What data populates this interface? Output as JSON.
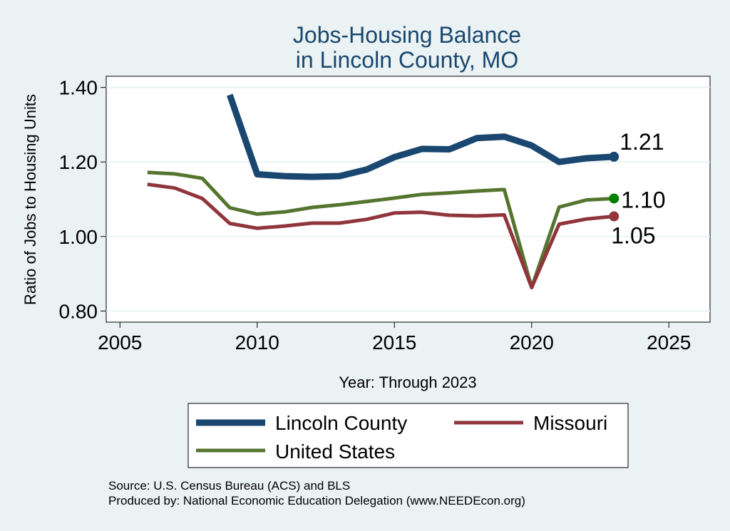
{
  "chart_data": {
    "type": "line",
    "title": [
      "Jobs-Housing Balance",
      "in Lincoln County, MO"
    ],
    "xlabel": "Year: Through 2023",
    "ylabel": "Ratio of Jobs to Housing Units",
    "xlim": [
      2004.5,
      2026.5
    ],
    "ylim": [
      0.77,
      1.43
    ],
    "x_ticks": [
      2005,
      2010,
      2015,
      2020,
      2025
    ],
    "x_tick_labels": [
      "2005",
      "2010",
      "2015",
      "2020",
      "2025"
    ],
    "y_ticks": [
      0.8,
      1.0,
      1.2,
      1.4
    ],
    "y_tick_labels": [
      "0.80",
      "1.00",
      "1.20",
      "1.40"
    ],
    "grid": true,
    "series": [
      {
        "name": "Lincoln County",
        "color": "#1a476f",
        "x": [
          2009,
          2010,
          2011,
          2012,
          2013,
          2014,
          2015,
          2016,
          2017,
          2018,
          2019,
          2020,
          2021,
          2022,
          2023
        ],
        "values": [
          1.38,
          1.167,
          1.162,
          1.16,
          1.162,
          1.18,
          1.213,
          1.235,
          1.234,
          1.264,
          1.268,
          1.244,
          1.2,
          1.21,
          1.214
        ],
        "end_label": "1.21"
      },
      {
        "name": "Missouri",
        "color": "#90353b",
        "x": [
          2006,
          2007,
          2008,
          2009,
          2010,
          2011,
          2012,
          2013,
          2014,
          2015,
          2016,
          2017,
          2018,
          2019,
          2020,
          2021,
          2022,
          2023
        ],
        "values": [
          1.14,
          1.13,
          1.102,
          1.035,
          1.022,
          1.028,
          1.036,
          1.036,
          1.046,
          1.063,
          1.065,
          1.057,
          1.055,
          1.058,
          0.863,
          1.033,
          1.047,
          1.054
        ],
        "end_label": "1.05"
      },
      {
        "name": "United States",
        "color": "#55752f",
        "x": [
          2006,
          2007,
          2008,
          2009,
          2010,
          2011,
          2012,
          2013,
          2014,
          2015,
          2016,
          2017,
          2018,
          2019,
          2020,
          2021,
          2022,
          2023
        ],
        "values": [
          1.172,
          1.168,
          1.156,
          1.077,
          1.06,
          1.066,
          1.078,
          1.085,
          1.094,
          1.103,
          1.113,
          1.117,
          1.122,
          1.126,
          0.863,
          1.079,
          1.098,
          1.102
        ],
        "end_label": "1.10",
        "marker_color": "#008000"
      }
    ],
    "legend": {
      "placement": "bottom",
      "order": [
        "Lincoln County",
        "Missouri",
        "United States"
      ]
    }
  },
  "source": {
    "line1": "Source: U.S. Census Bureau (ACS) and BLS",
    "line2": "Produced by: National Economic Education Delegation (www.NEEDEcon.org)"
  }
}
